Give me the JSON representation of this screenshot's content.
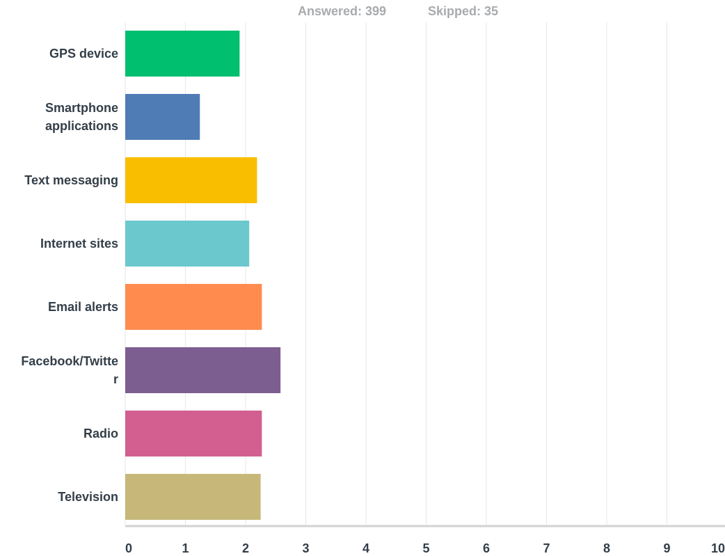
{
  "summary": {
    "answered_label": "Answered: 399",
    "skipped_label": "Skipped: 35"
  },
  "chart_data": {
    "type": "bar",
    "orientation": "horizontal",
    "categories": [
      [
        "GPS device"
      ],
      [
        "Smartphone",
        "applications"
      ],
      [
        "Text messaging"
      ],
      [
        "Internet sites"
      ],
      [
        "Email alerts"
      ],
      [
        "Facebook/Twitte",
        "r"
      ],
      [
        "Radio"
      ],
      [
        "Television"
      ]
    ],
    "values": [
      1.9,
      1.24,
      2.19,
      2.06,
      2.27,
      2.58,
      2.27,
      2.25
    ],
    "colors": [
      "#00bf6f",
      "#507cb6",
      "#f9be00",
      "#6bc8cd",
      "#ff8b4f",
      "#7d5e90",
      "#d25f90",
      "#c7b879"
    ],
    "xlim": [
      0,
      10
    ],
    "x_ticks": [
      "0",
      "1",
      "2",
      "3",
      "4",
      "5",
      "6",
      "7",
      "8",
      "9",
      "10"
    ],
    "grid": true
  }
}
